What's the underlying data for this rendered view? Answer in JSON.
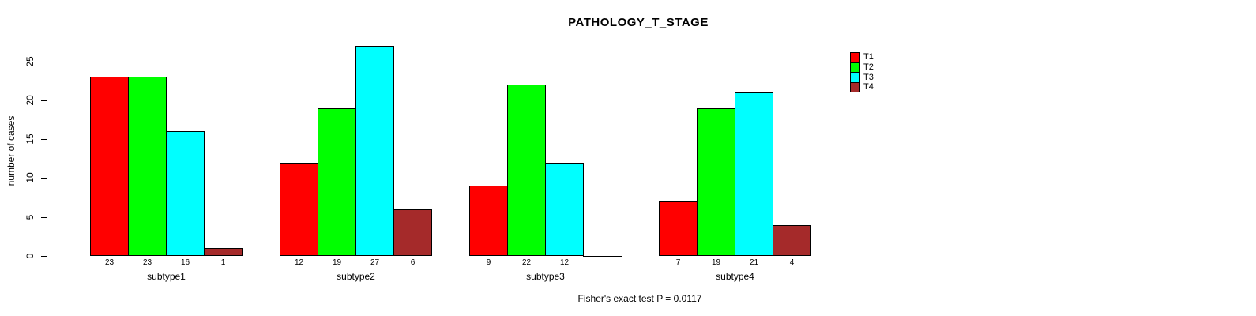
{
  "chart_data": {
    "type": "bar",
    "title": "PATHOLOGY_T_STAGE",
    "xlabel": "",
    "ylabel": "number of cases",
    "categories": [
      "subtype1",
      "subtype2",
      "subtype3",
      "subtype4"
    ],
    "series": [
      {
        "name": "T1",
        "color": "#FF0000",
        "values": [
          23,
          12,
          9,
          7
        ]
      },
      {
        "name": "T2",
        "color": "#00FF00",
        "values": [
          23,
          19,
          22,
          19
        ]
      },
      {
        "name": "T3",
        "color": "#00FFFF",
        "values": [
          16,
          27,
          12,
          21
        ]
      },
      {
        "name": "T4",
        "color": "#A52A2A",
        "values": [
          1,
          6,
          0,
          4
        ]
      }
    ],
    "y_ticks": [
      0,
      5,
      10,
      15,
      20,
      25
    ],
    "ylim": [
      0,
      25
    ],
    "grid": false,
    "bar_value_labels_shown": true,
    "zero_value_label_hidden": true,
    "legend_position": "top-right",
    "annotation": "Fisher's exact test P = 0.0117"
  }
}
